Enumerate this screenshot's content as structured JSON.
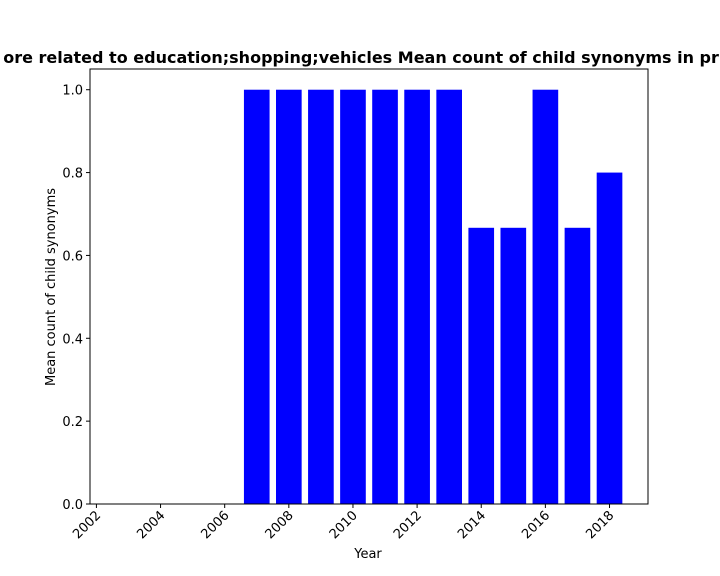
{
  "chart_data": {
    "type": "bar",
    "title": "ore related to education;shopping;vehicles Mean count of child synonyms in priv",
    "xlabel": "Year",
    "ylabel": "Mean count of child synonyms",
    "x": [
      2007,
      2008,
      2009,
      2010,
      2011,
      2012,
      2013,
      2014,
      2015,
      2016,
      2017,
      2018
    ],
    "values": [
      1.0,
      1.0,
      1.0,
      1.0,
      1.0,
      1.0,
      1.0,
      0.6667,
      0.6667,
      1.0,
      0.6667,
      0.8
    ],
    "xlim": [
      2001.8,
      2019.2
    ],
    "ylim": [
      0.0,
      1.05
    ],
    "x_ticks": [
      "2002",
      "2004",
      "2006",
      "2008",
      "2010",
      "2012",
      "2014",
      "2016",
      "2018"
    ],
    "y_ticks": [
      "0.0",
      "0.2",
      "0.4",
      "0.6",
      "0.8",
      "1.0"
    ],
    "bar_color": "#0000ff",
    "grid": false,
    "legend": "none"
  }
}
